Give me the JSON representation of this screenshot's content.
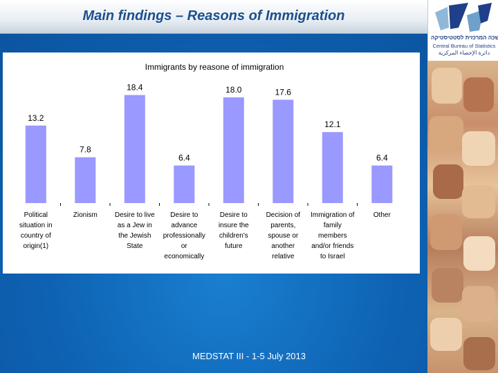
{
  "slide": {
    "title": "Main findings – Reasons of Immigration",
    "footer": "MEDSTAT III - 1-5 July 2013"
  },
  "logo": {
    "hebrew_name": "הלשכה המרכזית לסטטיסטיקה",
    "english_name": "Central Bureau of Statistics",
    "arabic_name": "دائرة الإحصاء المركزية",
    "icon": "cbs-logo-icon",
    "color": "#1f3f8a"
  },
  "chart_data": {
    "type": "bar",
    "title": "Immigrants by reasone of immigration",
    "categories": [
      "Political situation in country of origin(1)",
      "Zionism",
      "Desire to live as a Jew in the Jewish State",
      "Desire to advance professionally or economically",
      "Desire to insure the children's future",
      "Decision of parents, spouse or another relative",
      "Immigration of family members and/or friends to Israel",
      "Other"
    ],
    "category_lines": [
      [
        "Political",
        "situation in",
        "country of",
        "origin(1)"
      ],
      [
        "Zionism"
      ],
      [
        "Desire to live",
        "as a Jew in",
        "the Jewish",
        "State"
      ],
      [
        "Desire to",
        "advance",
        "professionally",
        "or",
        "economically"
      ],
      [
        "Desire to",
        "insure the",
        "children's",
        "future"
      ],
      [
        "Decision of",
        "parents,",
        "spouse or",
        "another",
        "relative"
      ],
      [
        "Immigration of",
        "family",
        "members",
        "and/or friends",
        "to Israel"
      ],
      [
        "Other"
      ]
    ],
    "values": [
      13.2,
      7.8,
      18.4,
      6.4,
      18.0,
      17.6,
      12.1,
      6.4
    ],
    "data_labels": [
      "13.2",
      "7.8",
      "18.4",
      "6.4",
      "18.0",
      "17.6",
      "12.1",
      "6.4"
    ],
    "ylim": [
      0,
      20
    ],
    "grid": false,
    "legend": "none",
    "bar_color": "#9999ff"
  }
}
